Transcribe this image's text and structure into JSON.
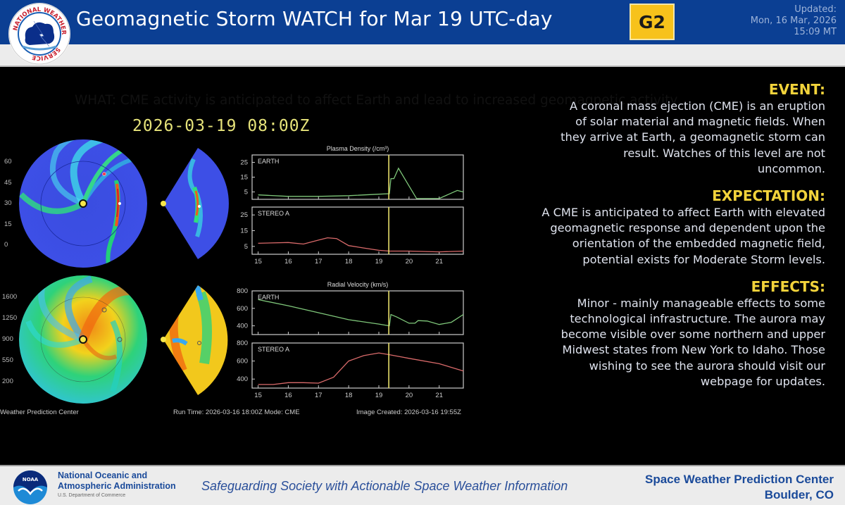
{
  "header": {
    "title": "Geomagnetic Storm WATCH for Mar 19 UTC-day",
    "scale_badge": "G2",
    "updated_label": "Updated:",
    "updated_date": "Mon, 16 Mar, 2026",
    "updated_time": "15:09 MT",
    "what": "WHAT: CME activity is anticipated to affect Earth and lead to increased geomagnetic activity",
    "logo_text": "NATIONAL WEATHER SERVICE"
  },
  "simulation": {
    "timestamp": "2026-03-19 08:00Z",
    "density_colorbar_ticks": [
      "60",
      "45",
      "30",
      "15",
      "0"
    ],
    "velocity_colorbar_ticks": [
      "1600",
      "1250",
      "900",
      "550",
      "200"
    ],
    "footer_source": "Weather Prediction Center",
    "footer_run": "Run Time: 2026-03-16 18:00Z  Mode: CME",
    "footer_created": "Image Created: 2026-03-16 19:55Z"
  },
  "chart_data": [
    {
      "type": "line",
      "title": "Plasma Density (/cm³)",
      "panel": "EARTH",
      "x": [
        15,
        16,
        17,
        18,
        19,
        19.35,
        19.4,
        19.5,
        19.65,
        20.0,
        20.25,
        21.0,
        21.6,
        21.8
      ],
      "values": [
        3,
        2,
        2,
        2.5,
        3.5,
        3.8,
        14,
        14,
        21,
        9,
        0.5,
        0.5,
        6,
        5
      ],
      "ylim": [
        0,
        30
      ],
      "yticks": [
        5,
        15,
        25
      ],
      "xticks": [
        15,
        16,
        17,
        18,
        19,
        20,
        21
      ],
      "color": "#7fc77a",
      "now_marker_x": 19.33
    },
    {
      "type": "line",
      "title": "Plasma Density (/cm³)",
      "panel": "STEREO A",
      "x": [
        15,
        16,
        16.5,
        17,
        17.3,
        17.6,
        18,
        18.5,
        19,
        19.35,
        20,
        21,
        21.8
      ],
      "values": [
        7,
        7.5,
        6.5,
        9,
        10.5,
        10,
        5.5,
        4,
        2.5,
        2,
        2,
        1.5,
        2
      ],
      "ylim": [
        0,
        30
      ],
      "yticks": [
        5,
        15,
        25
      ],
      "xticks": [
        15,
        16,
        17,
        18,
        19,
        20,
        21
      ],
      "color": "#d96a6a",
      "now_marker_x": 19.33
    },
    {
      "type": "line",
      "title": "Radial Velocity (km/s)",
      "panel": "EARTH",
      "x": [
        15,
        16,
        17,
        18,
        19,
        19.35,
        19.4,
        19.6,
        20.0,
        20.2,
        20.3,
        20.6,
        21.0,
        21.4,
        21.8
      ],
      "values": [
        700,
        630,
        550,
        470,
        420,
        400,
        530,
        500,
        430,
        430,
        460,
        455,
        415,
        440,
        530
      ],
      "ylim": [
        300,
        800
      ],
      "yticks": [
        400,
        600,
        800
      ],
      "xticks": [
        15,
        16,
        17,
        18,
        19,
        20,
        21
      ],
      "color": "#7fc77a",
      "now_marker_x": 19.33
    },
    {
      "type": "line",
      "title": "Radial Velocity (km/s)",
      "panel": "STEREO A",
      "x": [
        15,
        15.5,
        16,
        16.5,
        17,
        17.5,
        18,
        18.5,
        19,
        19.35,
        20,
        21,
        21.8
      ],
      "values": [
        340,
        340,
        360,
        360,
        355,
        420,
        600,
        660,
        690,
        670,
        630,
        570,
        490
      ],
      "ylim": [
        300,
        800
      ],
      "yticks": [
        400,
        600,
        800
      ],
      "xticks": [
        15,
        16,
        17,
        18,
        19,
        20,
        21
      ],
      "color": "#d96a6a",
      "now_marker_x": 19.33
    }
  ],
  "info": {
    "sections": [
      {
        "heading": "EVENT:",
        "lines": [
          "A coronal mass ejection (CME) is an eruption",
          "of solar material and magnetic fields. When",
          "they arrive at Earth, a geomagnetic storm can",
          "result. Watches of this level are not",
          "uncommon."
        ]
      },
      {
        "heading": "EXPECTATION:",
        "lines": [
          "A CME is anticipated to affect Earth with elevated",
          "geomagnetic response and dependent upon the",
          "orientation of the embedded magnetic field,",
          "potential exists for Moderate Storm levels."
        ]
      },
      {
        "heading": "EFFECTS:",
        "lines": [
          "Minor - mainly manageable effects to some",
          "technological infrastructure. The aurora may",
          "become visible over some northern and upper",
          "Midwest states from New York to Idaho. Those",
          "wishing to see the aurora should visit our",
          "webpage for updates."
        ]
      }
    ]
  },
  "footer": {
    "noaa_line1": "National Oceanic and",
    "noaa_line2": "Atmospheric Administration",
    "noaa_dept": "U.S. Department of Commerce",
    "noaa_logo_text": "NOAA",
    "tagline": "Safeguarding Society with Actionable Space Weather Information",
    "center_name": "Space Weather Prediction Center",
    "center_location": "Boulder, CO"
  },
  "colors": {
    "header_blue": "#0b3f93",
    "badge_yellow": "#f7c21b",
    "heading_yellow": "#f2d33b",
    "earth_line": "#7fc77a",
    "stereo_line": "#d96a6a",
    "now_marker": "#e8e06a"
  }
}
